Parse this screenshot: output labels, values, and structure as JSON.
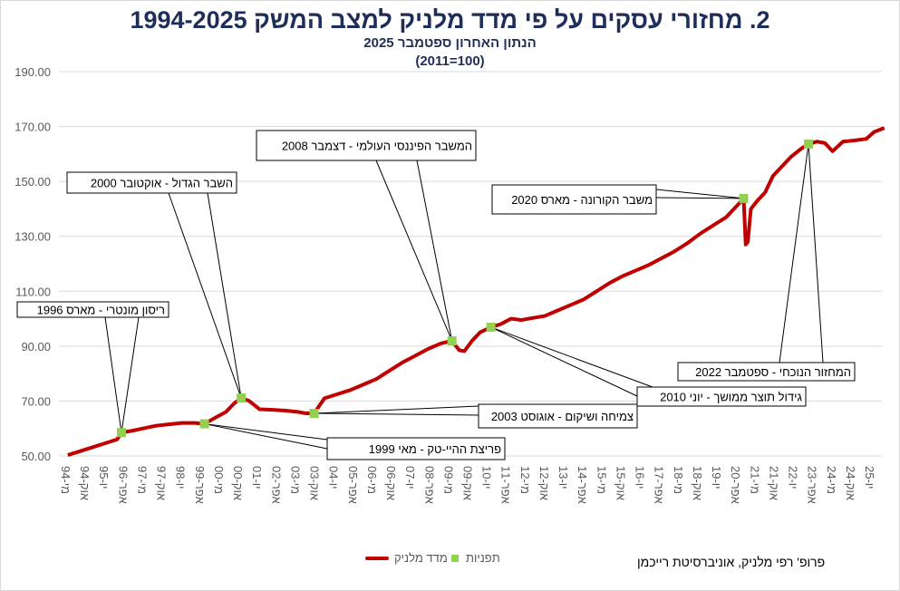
{
  "chart_data": {
    "type": "line",
    "title": "2. מחזורי עסקים על פי מדד מלניק למצב המשק 1994-2025",
    "subtitle": "הנתון האחרון ספטמבר 2025",
    "base_note": "(100=2011)",
    "ylim": [
      50,
      190
    ],
    "y_ticks": [
      "50.00",
      "70.00",
      "90.00",
      "110.00",
      "130.00",
      "150.00",
      "170.00",
      "190.00"
    ],
    "y_tick_values": [
      50,
      70,
      90,
      110,
      130,
      150,
      170,
      190
    ],
    "grid": true,
    "x_tick_labels": [
      "מי-94",
      "אוק-94",
      "יו-95",
      "אפר-96",
      "מי-97",
      "אוק-97",
      "יו-98",
      "אפר-99",
      "מי-00",
      "אוק-00",
      "יו-01",
      "אפר-02",
      "מי-03",
      "אוק-03",
      "יו-04",
      "אפר-05",
      "מי-06",
      "אוק-06",
      "יו-07",
      "אפר-08",
      "מי-09",
      "אוק-09",
      "יו-10",
      "אפר-11",
      "מי-12",
      "אוק-12",
      "יו-13",
      "אפר-14",
      "מי-15",
      "אוק-15",
      "יו-16",
      "אפר-17",
      "מי-18",
      "אוק-18",
      "יו-19",
      "אפר-20",
      "מי-21",
      "אוק-21",
      "יו-22",
      "אפר-23",
      "מי-24",
      "אוק-24",
      "יו-25"
    ],
    "series": [
      {
        "name": "מדד מלניק",
        "color": "#c00000",
        "x": [
          1994.1,
          1994.5,
          1995.0,
          1995.5,
          1996.0,
          1996.17,
          1996.6,
          1997.0,
          1997.5,
          1998.0,
          1998.5,
          1999.0,
          1999.37,
          1999.8,
          2000.2,
          2000.5,
          2000.79,
          2001.1,
          2001.5,
          2002.0,
          2002.5,
          2003.0,
          2003.3,
          2003.6,
          2004.0,
          2004.5,
          2005.0,
          2005.5,
          2006.0,
          2006.5,
          2007.0,
          2007.5,
          2008.0,
          2008.5,
          2008.92,
          2009.2,
          2009.4,
          2009.7,
          2010.0,
          2010.42,
          2010.8,
          2011.2,
          2011.6,
          2012.0,
          2012.5,
          2013.0,
          2013.5,
          2014.0,
          2014.5,
          2015.0,
          2015.5,
          2016.0,
          2016.5,
          2017.0,
          2017.5,
          2018.0,
          2018.5,
          2019.0,
          2019.5,
          2019.9,
          2020.17,
          2020.25,
          2020.33,
          2020.45,
          2020.7,
          2021.0,
          2021.3,
          2021.7,
          2022.0,
          2022.4,
          2022.67,
          2023.0,
          2023.3,
          2023.6,
          2024.0,
          2024.5,
          2024.9,
          2025.2,
          2025.6
        ],
        "y": [
          50.3,
          51.5,
          53,
          54.5,
          56,
          58.5,
          59.2,
          60,
          61,
          61.5,
          62,
          62,
          61.7,
          64,
          66,
          69,
          71.1,
          70,
          67,
          66.8,
          66.5,
          66,
          65.5,
          65.5,
          71,
          72.5,
          74,
          76,
          78,
          81,
          84,
          86.5,
          89,
          91,
          91.9,
          88.5,
          88.2,
          92,
          95,
          96.9,
          98,
          100,
          99.5,
          100.2,
          101,
          103,
          105,
          107,
          110,
          113,
          115.5,
          117.5,
          119.5,
          122,
          124.5,
          127.5,
          131,
          134,
          137,
          141,
          143.8,
          127,
          128,
          140,
          143,
          146,
          152,
          156,
          159,
          162,
          163.6,
          164.5,
          164,
          161,
          164.5,
          165,
          165.5,
          168,
          169.5
        ]
      },
      {
        "name": "תפניות",
        "color": "#92d050",
        "type": "scatter",
        "x": [
          1996.17,
          1999.37,
          2000.79,
          2003.6,
          2008.92,
          2010.42,
          2020.17,
          2022.67
        ],
        "y": [
          58.5,
          61.7,
          71.1,
          65.5,
          91.9,
          96.9,
          143.8,
          163.6
        ]
      }
    ],
    "annotations": [
      {
        "text": "ריסון מונטרי - מארס 1996",
        "point": 0
      },
      {
        "text": "פריצת ההיי-טק - מאי 1999",
        "point": 1
      },
      {
        "text": "השבר הגדול - אוקטובר 2000",
        "point": 2
      },
      {
        "text": "צמיחה ושיקום - אוגוסט 2003",
        "point": 3
      },
      {
        "text": "המשבר הפיננסי העולמי - דצמבר 2008",
        "point": 4
      },
      {
        "text": "גידול תוצר ממושך - יוני 2010",
        "point": 5
      },
      {
        "text": "משבר הקורונה - מארס 2020",
        "point": 6
      },
      {
        "text": "המחזור הנוכחי - ספטמבר 2022",
        "point": 7
      }
    ],
    "legend": {
      "line_label": "מדד מלניק",
      "marker_label": "תפניות",
      "position": "bottom"
    }
  },
  "credit": "פרופ' רפי מלניק, אוניברסיטת רייכמן"
}
